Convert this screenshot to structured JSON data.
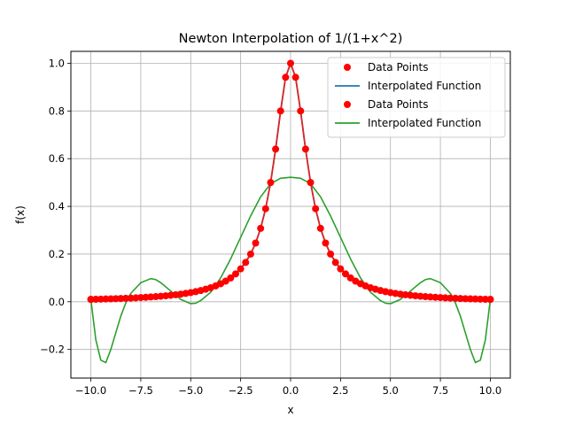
{
  "chart_data": {
    "type": "line",
    "title": "Newton Interpolation of 1/(1+x^2)",
    "xlabel": "x",
    "ylabel": "f(x)",
    "xlim": [
      -11.0,
      11.0
    ],
    "ylim": [
      -0.32,
      1.05
    ],
    "grid": true,
    "legend_position": "top-right",
    "x_ticks": [
      -10.0,
      -7.5,
      -5.0,
      -2.5,
      0.0,
      2.5,
      5.0,
      7.5,
      10.0
    ],
    "x_tick_labels": [
      "−10.0",
      "−7.5",
      "−5.0",
      "−2.5",
      "0.0",
      "2.5",
      "5.0",
      "7.5",
      "10.0"
    ],
    "y_ticks": [
      -0.2,
      0.0,
      0.2,
      0.4,
      0.6,
      0.8,
      1.0
    ],
    "y_tick_labels": [
      "−0.2",
      "0.0",
      "0.2",
      "0.4",
      "0.6",
      "0.8",
      "1.0"
    ],
    "series": [
      {
        "name": "Data Points",
        "kind": "points",
        "color": "#ff0000",
        "x": [
          -10.0,
          -9.75,
          -9.5,
          -9.25,
          -9.0,
          -8.75,
          -8.5,
          -8.25,
          -8.0,
          -7.75,
          -7.5,
          -7.25,
          -7.0,
          -6.75,
          -6.5,
          -6.25,
          -6.0,
          -5.75,
          -5.5,
          -5.25,
          -5.0,
          -4.75,
          -4.5,
          -4.25,
          -4.0,
          -3.75,
          -3.5,
          -3.25,
          -3.0,
          -2.75,
          -2.5,
          -2.25,
          -2.0,
          -1.75,
          -1.5,
          -1.25,
          -1.0,
          -0.75,
          -0.5,
          -0.25,
          0.0,
          0.25,
          0.5,
          0.75,
          1.0,
          1.25,
          1.5,
          1.75,
          2.0,
          2.25,
          2.5,
          2.75,
          3.0,
          3.25,
          3.5,
          3.75,
          4.0,
          4.25,
          4.5,
          4.75,
          5.0,
          5.25,
          5.5,
          5.75,
          6.0,
          6.25,
          6.5,
          6.75,
          7.0,
          7.25,
          7.5,
          7.75,
          8.0,
          8.25,
          8.5,
          8.75,
          9.0,
          9.25,
          9.5,
          9.75,
          10.0
        ],
        "y": [
          0.01,
          0.0104,
          0.011,
          0.0116,
          0.0122,
          0.0129,
          0.0137,
          0.0145,
          0.0154,
          0.0164,
          0.0175,
          0.0187,
          0.02,
          0.0215,
          0.0231,
          0.025,
          0.027,
          0.0294,
          0.032,
          0.035,
          0.0385,
          0.0425,
          0.0471,
          0.0525,
          0.0588,
          0.0664,
          0.0755,
          0.0865,
          0.1,
          0.1168,
          0.1379,
          0.1649,
          0.2,
          0.2462,
          0.3077,
          0.3902,
          0.5,
          0.64,
          0.8,
          0.9412,
          1.0,
          0.9412,
          0.8,
          0.64,
          0.5,
          0.3902,
          0.3077,
          0.2462,
          0.2,
          0.1649,
          0.1379,
          0.1168,
          0.1,
          0.0865,
          0.0755,
          0.0664,
          0.0588,
          0.0525,
          0.0471,
          0.0425,
          0.0385,
          0.035,
          0.032,
          0.0294,
          0.027,
          0.025,
          0.0231,
          0.0215,
          0.02,
          0.0187,
          0.0175,
          0.0164,
          0.0154,
          0.0145,
          0.0137,
          0.0129,
          0.0122,
          0.0116,
          0.011,
          0.0104,
          0.01
        ]
      },
      {
        "name": "Interpolated Function",
        "kind": "line",
        "color": "#1f77b4",
        "x": [
          -10.0,
          -9.5,
          -9.0,
          -8.5,
          -8.0,
          -7.5,
          -7.0,
          -6.5,
          -6.0,
          -5.5,
          -5.0,
          -4.5,
          -4.0,
          -3.5,
          -3.0,
          -2.5,
          -2.0,
          -1.75,
          -1.5,
          -1.25,
          -1.0,
          -0.75,
          -0.5,
          -0.25,
          0.0,
          0.25,
          0.5,
          0.75,
          1.0,
          1.25,
          1.5,
          1.75,
          2.0,
          2.5,
          3.0,
          3.5,
          4.0,
          4.5,
          5.0,
          5.5,
          6.0,
          6.5,
          7.0,
          7.5,
          8.0,
          8.5,
          9.0,
          9.5,
          10.0
        ],
        "y": [
          0.0099,
          0.011,
          0.0122,
          0.0137,
          0.0154,
          0.0175,
          0.02,
          0.0231,
          0.027,
          0.032,
          0.0385,
          0.0471,
          0.0588,
          0.0755,
          0.1,
          0.1379,
          0.2,
          0.2462,
          0.3077,
          0.3902,
          0.5,
          0.64,
          0.8,
          0.9412,
          1.0,
          0.9412,
          0.8,
          0.64,
          0.5,
          0.3902,
          0.3077,
          0.2462,
          0.2,
          0.1379,
          0.1,
          0.0755,
          0.0588,
          0.0471,
          0.0385,
          0.032,
          0.027,
          0.0231,
          0.02,
          0.0175,
          0.0154,
          0.0137,
          0.0122,
          0.011,
          0.0099
        ]
      },
      {
        "name": "Data Points",
        "kind": "points",
        "color": "#ff0000",
        "x": [
          -10.0,
          10.0
        ],
        "y": [
          0.0099,
          0.0099
        ]
      },
      {
        "name": "Interpolated Function",
        "kind": "line",
        "color": "#2ca02c",
        "x": [
          -10.0,
          -9.75,
          -9.5,
          -9.25,
          -9.0,
          -8.75,
          -8.5,
          -8.25,
          -8.0,
          -7.5,
          -7.0,
          -6.75,
          -6.5,
          -6.0,
          -5.5,
          -5.0,
          -4.75,
          -4.5,
          -4.0,
          -3.5,
          -3.0,
          -2.5,
          -2.0,
          -1.5,
          -1.0,
          -0.5,
          0.0,
          0.5,
          1.0,
          1.5,
          2.0,
          2.5,
          3.0,
          3.5,
          4.0,
          4.5,
          4.75,
          5.0,
          5.5,
          6.0,
          6.5,
          6.75,
          7.0,
          7.5,
          8.0,
          8.25,
          8.5,
          8.75,
          9.0,
          9.25,
          9.5,
          9.75,
          10.0
        ],
        "y": [
          0.01,
          -0.16,
          -0.245,
          -0.255,
          -0.2,
          -0.13,
          -0.06,
          -0.005,
          0.035,
          0.08,
          0.097,
          0.093,
          0.08,
          0.045,
          0.01,
          -0.008,
          -0.006,
          0.005,
          0.04,
          0.1,
          0.18,
          0.27,
          0.36,
          0.44,
          0.495,
          0.518,
          0.522,
          0.518,
          0.495,
          0.44,
          0.36,
          0.27,
          0.18,
          0.1,
          0.04,
          0.005,
          -0.006,
          -0.008,
          0.01,
          0.045,
          0.08,
          0.093,
          0.097,
          0.08,
          0.035,
          -0.005,
          -0.06,
          -0.13,
          -0.2,
          -0.255,
          -0.245,
          -0.16,
          0.01
        ]
      }
    ]
  }
}
